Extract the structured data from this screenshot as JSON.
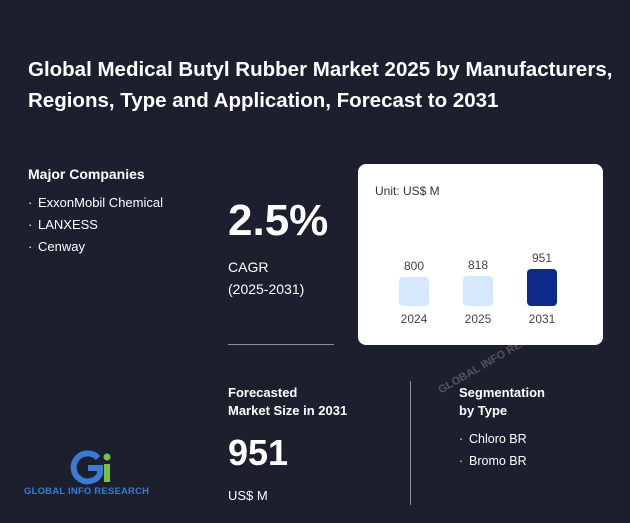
{
  "title": "Global Medical Butyl Rubber Market 2025 by Manufacturers, Regions, Type and Application, Forecast to 2031",
  "companies": {
    "heading": "Major Companies",
    "items": [
      "ExxonMobil Chemical",
      "LANXESS",
      "Cenway"
    ]
  },
  "cagr": {
    "value": "2.5%",
    "label_line1": "CAGR",
    "label_line2": "(2025-2031)"
  },
  "forecast": {
    "heading_line1": "Forecasted",
    "heading_line2": "Market Size in 2031",
    "value": "951",
    "unit": "US$ M"
  },
  "segmentation": {
    "heading_line1": "Segmentation",
    "heading_line2": "by Type",
    "items": [
      "Chloro BR",
      "Bromo BR"
    ]
  },
  "logo": {
    "text": "GLOBAL INFO RESEARCH",
    "mark": "Gi"
  },
  "watermark": {
    "text": "GLOBAL INFO RESEARCH"
  },
  "colors": {
    "background": "#1c1f2e",
    "bar_light": "#d6e8fb",
    "bar_highlight": "#0d2a8a",
    "logo_blue": "#3a7bd5",
    "logo_green": "#7bc043"
  },
  "chart_data": {
    "type": "bar",
    "unit_label": "Unit: US$ M",
    "categories": [
      "2024",
      "2025",
      "2031"
    ],
    "values": [
      800,
      818,
      951
    ],
    "highlight_index": 2
  }
}
